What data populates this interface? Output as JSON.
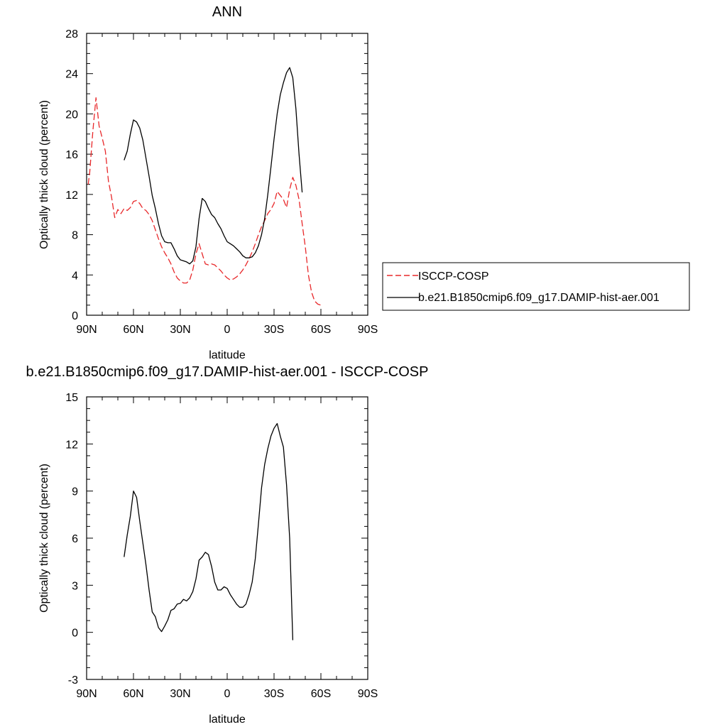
{
  "chart_data": [
    {
      "type": "line",
      "title": "ANN",
      "xlabel": "latitude",
      "ylabel": "Optically thick cloud (percent)",
      "xlim": [
        90,
        -90
      ],
      "ylim": [
        0,
        28
      ],
      "x_ticks": [
        90,
        60,
        30,
        0,
        -30,
        -60,
        -90
      ],
      "x_tick_labels": [
        "90N",
        "60N",
        "30N",
        "0",
        "30S",
        "60S",
        "90S"
      ],
      "y_ticks": [
        0,
        4,
        8,
        12,
        16,
        20,
        24,
        28
      ],
      "y_tick_labels": [
        "0",
        "4",
        "8",
        "12",
        "16",
        "20",
        "24",
        "28"
      ],
      "grid": false,
      "legend_position": "right",
      "series": [
        {
          "name": "ISCCP-COSP",
          "color": "#e8282a",
          "dash": "dashed",
          "points": [
            [
              89,
              13
            ],
            [
              88,
              14.2
            ],
            [
              86,
              18.3
            ],
            [
              84,
              21.6
            ],
            [
              82,
              18.8
            ],
            [
              80,
              17.6
            ],
            [
              78,
              16.3
            ],
            [
              76,
              13.3
            ],
            [
              74,
              11.7
            ],
            [
              72,
              9.7
            ],
            [
              70,
              10.5
            ],
            [
              68,
              10.1
            ],
            [
              66,
              10.6
            ],
            [
              64,
              10.4
            ],
            [
              62,
              10.7
            ],
            [
              60,
              11.3
            ],
            [
              58,
              11.4
            ],
            [
              56,
              11.1
            ],
            [
              54,
              10.6
            ],
            [
              52,
              10.4
            ],
            [
              50,
              10
            ],
            [
              48,
              9.4
            ],
            [
              46,
              8.5
            ],
            [
              44,
              7.6
            ],
            [
              42,
              6.8
            ],
            [
              40,
              6.2
            ],
            [
              38,
              5.7
            ],
            [
              36,
              5.1
            ],
            [
              34,
              4.3
            ],
            [
              32,
              3.7
            ],
            [
              30,
              3.4
            ],
            [
              28,
              3.2
            ],
            [
              26,
              3.2
            ],
            [
              24,
              3.5
            ],
            [
              22,
              4.5
            ],
            [
              20,
              6.1
            ],
            [
              18,
              7.1
            ],
            [
              16,
              6.1
            ],
            [
              14,
              5.1
            ],
            [
              12,
              5
            ],
            [
              10,
              5.1
            ],
            [
              8,
              5
            ],
            [
              6,
              4.7
            ],
            [
              4,
              4.4
            ],
            [
              2,
              4
            ],
            [
              0,
              3.7
            ],
            [
              -2,
              3.5
            ],
            [
              -4,
              3.6
            ],
            [
              -6,
              3.8
            ],
            [
              -8,
              4.1
            ],
            [
              -10,
              4.5
            ],
            [
              -12,
              5
            ],
            [
              -14,
              5.6
            ],
            [
              -16,
              6.3
            ],
            [
              -18,
              7.1
            ],
            [
              -20,
              8
            ],
            [
              -22,
              8.8
            ],
            [
              -24,
              9.4
            ],
            [
              -26,
              10.1
            ],
            [
              -28,
              10.5
            ],
            [
              -30,
              11.1
            ],
            [
              -32,
              12.3
            ],
            [
              -34,
              11.9
            ],
            [
              -36,
              11.5
            ],
            [
              -38,
              10.7
            ],
            [
              -40,
              12.5
            ],
            [
              -42,
              13.7
            ],
            [
              -44,
              12.9
            ],
            [
              -46,
              11.5
            ],
            [
              -48,
              9.1
            ],
            [
              -50,
              6.8
            ],
            [
              -52,
              4
            ],
            [
              -54,
              2.3
            ],
            [
              -56,
              1.4
            ],
            [
              -58,
              1.1
            ],
            [
              -60,
              1
            ]
          ]
        },
        {
          "name": "b.e21.B1850cmip6.f09_g17.DAMIP-hist-aer.001",
          "color": "#000000",
          "dash": "solid",
          "points": [
            [
              66,
              15.4
            ],
            [
              64,
              16.3
            ],
            [
              62,
              18
            ],
            [
              60,
              19.4
            ],
            [
              58,
              19.2
            ],
            [
              56,
              18.6
            ],
            [
              54,
              17.4
            ],
            [
              52,
              15.6
            ],
            [
              50,
              13.8
            ],
            [
              48,
              11.9
            ],
            [
              46,
              10.6
            ],
            [
              44,
              9.1
            ],
            [
              42,
              7.9
            ],
            [
              40,
              7.3
            ],
            [
              38,
              7.2
            ],
            [
              36,
              7.2
            ],
            [
              34,
              6.6
            ],
            [
              32,
              5.9
            ],
            [
              30,
              5.5
            ],
            [
              28,
              5.4
            ],
            [
              26,
              5.3
            ],
            [
              24,
              5.1
            ],
            [
              22,
              5.4
            ],
            [
              20,
              6.8
            ],
            [
              18,
              9.6
            ],
            [
              16,
              11.6
            ],
            [
              14,
              11.3
            ],
            [
              12,
              10.6
            ],
            [
              10,
              10
            ],
            [
              8,
              9.7
            ],
            [
              6,
              9.1
            ],
            [
              4,
              8.6
            ],
            [
              2,
              7.9
            ],
            [
              0,
              7.3
            ],
            [
              -2,
              7.1
            ],
            [
              -4,
              6.9
            ],
            [
              -6,
              6.6
            ],
            [
              -8,
              6.3
            ],
            [
              -10,
              5.9
            ],
            [
              -12,
              5.7
            ],
            [
              -14,
              5.7
            ],
            [
              -16,
              5.8
            ],
            [
              -18,
              6.2
            ],
            [
              -20,
              6.9
            ],
            [
              -22,
              8
            ],
            [
              -24,
              9.6
            ],
            [
              -26,
              12
            ],
            [
              -28,
              14.7
            ],
            [
              -30,
              17.5
            ],
            [
              -32,
              20
            ],
            [
              -34,
              21.9
            ],
            [
              -36,
              23.1
            ],
            [
              -38,
              24.1
            ],
            [
              -40,
              24.6
            ],
            [
              -42,
              23.6
            ],
            [
              -44,
              20.5
            ],
            [
              -46,
              16
            ],
            [
              -48,
              12.2
            ]
          ]
        }
      ]
    },
    {
      "type": "line",
      "title": "b.e21.B1850cmip6.f09_g17.DAMIP-hist-aer.001 - ISCCP-COSP",
      "xlabel": "latitude",
      "ylabel": "Optically thick cloud (percent)",
      "xlim": [
        90,
        -90
      ],
      "ylim": [
        -3,
        15
      ],
      "x_ticks": [
        90,
        60,
        30,
        0,
        -30,
        -60,
        -90
      ],
      "x_tick_labels": [
        "90N",
        "60N",
        "30N",
        "0",
        "30S",
        "60S",
        "90S"
      ],
      "y_ticks": [
        -3,
        0,
        3,
        6,
        9,
        12,
        15
      ],
      "y_tick_labels": [
        "-3",
        "0",
        "3",
        "6",
        "9",
        "12",
        "15"
      ],
      "grid": false,
      "series": [
        {
          "color": "#000000",
          "dash": "solid",
          "points": [
            [
              66,
              4.8
            ],
            [
              64,
              6.2
            ],
            [
              62,
              7.4
            ],
            [
              60,
              9
            ],
            [
              58,
              8.6
            ],
            [
              56,
              7.1
            ],
            [
              54,
              5.7
            ],
            [
              52,
              4.3
            ],
            [
              50,
              2.7
            ],
            [
              48,
              1.3
            ],
            [
              46,
              1
            ],
            [
              44,
              0.3
            ],
            [
              42,
              0.05
            ],
            [
              40,
              0.4
            ],
            [
              38,
              0.8
            ],
            [
              36,
              1.4
            ],
            [
              34,
              1.5
            ],
            [
              32,
              1.8
            ],
            [
              30,
              1.85
            ],
            [
              28,
              2.1
            ],
            [
              26,
              2
            ],
            [
              24,
              2.2
            ],
            [
              22,
              2.6
            ],
            [
              20,
              3.4
            ],
            [
              18,
              4.6
            ],
            [
              16,
              4.8
            ],
            [
              14,
              5.1
            ],
            [
              12,
              4.95
            ],
            [
              10,
              4.2
            ],
            [
              8,
              3.2
            ],
            [
              6,
              2.7
            ],
            [
              4,
              2.7
            ],
            [
              2,
              2.9
            ],
            [
              0,
              2.8
            ],
            [
              -2,
              2.4
            ],
            [
              -4,
              2.1
            ],
            [
              -6,
              1.8
            ],
            [
              -8,
              1.6
            ],
            [
              -10,
              1.6
            ],
            [
              -12,
              1.8
            ],
            [
              -14,
              2.4
            ],
            [
              -16,
              3.2
            ],
            [
              -18,
              4.7
            ],
            [
              -20,
              6.9
            ],
            [
              -22,
              9.2
            ],
            [
              -24,
              10.7
            ],
            [
              -26,
              11.7
            ],
            [
              -28,
              12.5
            ],
            [
              -30,
              13
            ],
            [
              -32,
              13.3
            ],
            [
              -34,
              12.5
            ],
            [
              -36,
              11.8
            ],
            [
              -38,
              9.4
            ],
            [
              -40,
              6
            ],
            [
              -42,
              -0.5
            ]
          ]
        }
      ]
    }
  ]
}
